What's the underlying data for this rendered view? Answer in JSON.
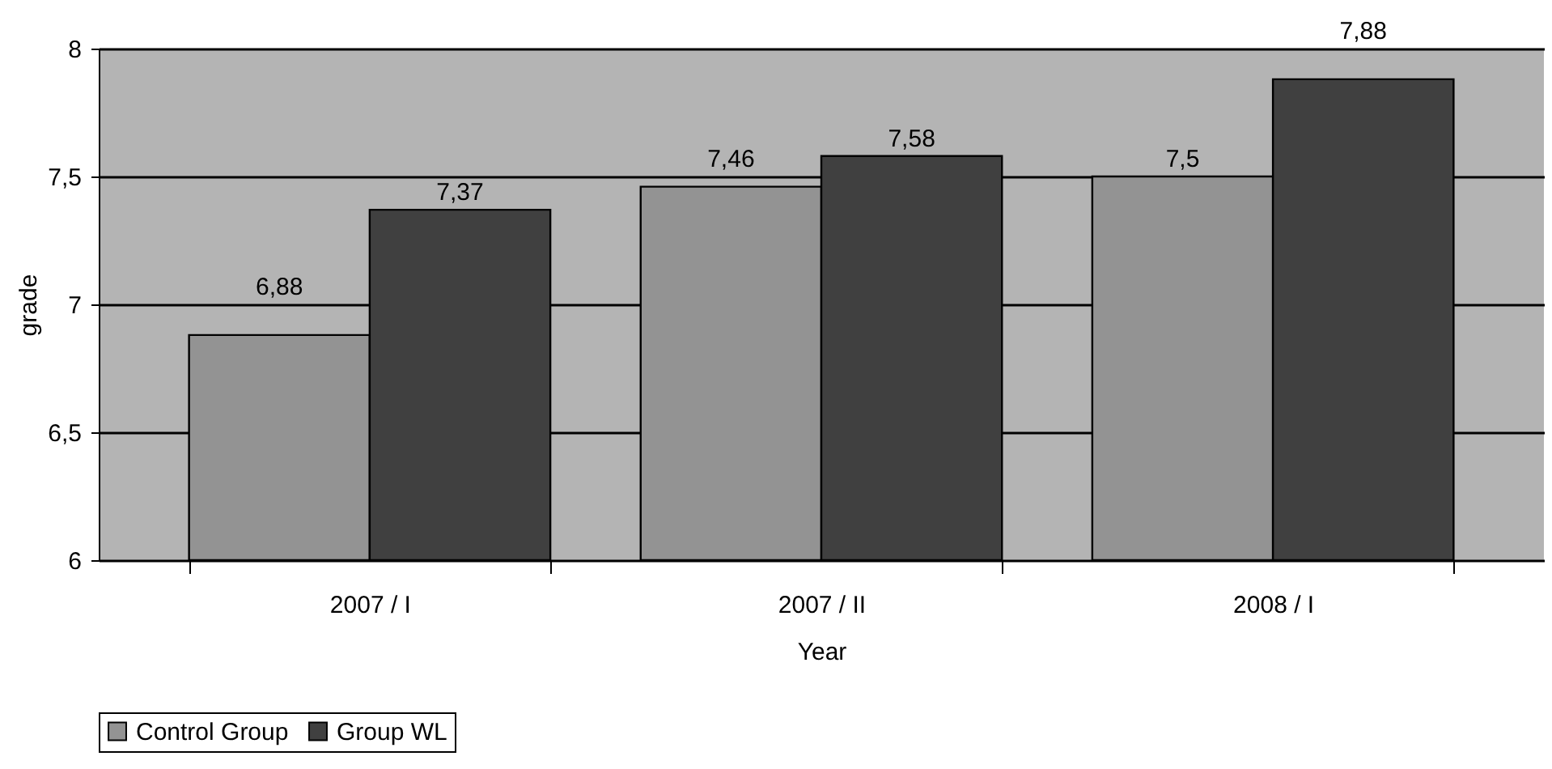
{
  "chart_data": {
    "type": "bar",
    "xlabel": "Year",
    "ylabel": "grade",
    "categories": [
      "2007 / I",
      "2007 / II",
      "2008 / I"
    ],
    "series": [
      {
        "name": "Control Group",
        "color": "#939393",
        "values": [
          6.88,
          7.46,
          7.5
        ],
        "value_labels": [
          "6,88",
          "7,46",
          "7,5"
        ]
      },
      {
        "name": "Group WL",
        "color": "#404040",
        "values": [
          7.37,
          7.58,
          7.88
        ],
        "value_labels": [
          "7,37",
          "7,58",
          "7,88"
        ]
      }
    ],
    "ylim": [
      6,
      8
    ],
    "yticks": [
      {
        "value": 6,
        "label": "6"
      },
      {
        "value": 6.5,
        "label": "6,5"
      },
      {
        "value": 7,
        "label": "7"
      },
      {
        "value": 7.5,
        "label": "7,5"
      },
      {
        "value": 8,
        "label": "8"
      }
    ],
    "grid": "y",
    "legend": "bottom"
  }
}
